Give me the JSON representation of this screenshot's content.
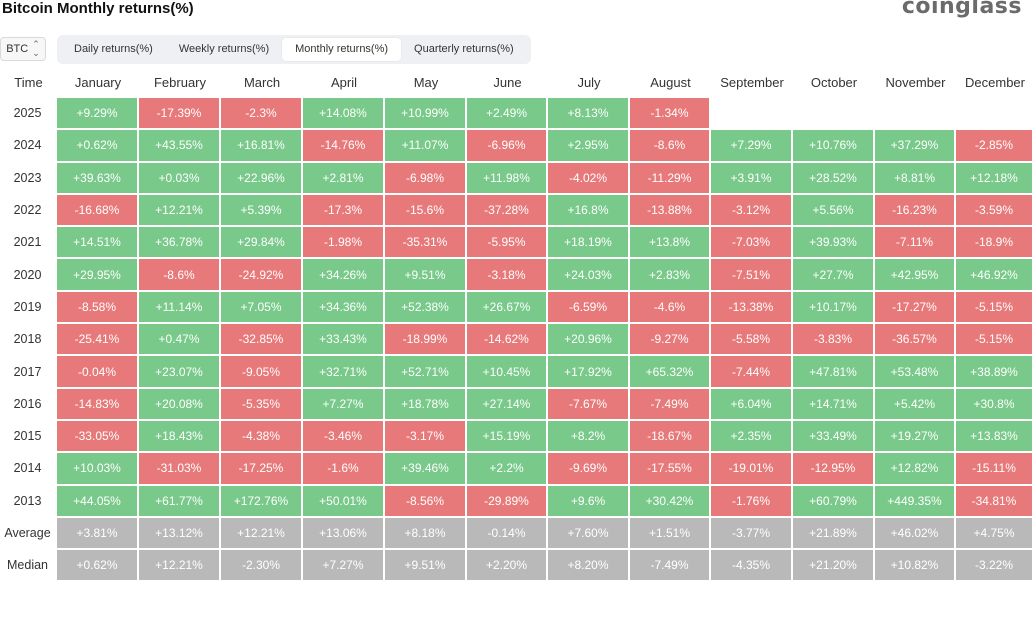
{
  "title": "Bitcoin Monthly returns(%)",
  "brand": "coinglass",
  "asset_selector": {
    "value": "BTC"
  },
  "tabs": [
    {
      "label": "Daily returns(%)",
      "active": false
    },
    {
      "label": "Weekly returns(%)",
      "active": false
    },
    {
      "label": "Monthly returns(%)",
      "active": true
    },
    {
      "label": "Quarterly returns(%)",
      "active": false
    }
  ],
  "colors": {
    "positive": "#78c98a",
    "negative": "#e8797a",
    "stat": "#b9b9b9"
  },
  "table": {
    "corner_label": "Time",
    "months": [
      "January",
      "February",
      "March",
      "April",
      "May",
      "June",
      "July",
      "August",
      "September",
      "October",
      "November",
      "December"
    ],
    "rows": [
      {
        "year": "2025",
        "values": [
          "+9.29%",
          "-17.39%",
          "-2.3%",
          "+14.08%",
          "+10.99%",
          "+2.49%",
          "+8.13%",
          "-1.34%",
          "",
          "",
          "",
          ""
        ]
      },
      {
        "year": "2024",
        "values": [
          "+0.62%",
          "+43.55%",
          "+16.81%",
          "-14.76%",
          "+11.07%",
          "-6.96%",
          "+2.95%",
          "-8.6%",
          "+7.29%",
          "+10.76%",
          "+37.29%",
          "-2.85%"
        ]
      },
      {
        "year": "2023",
        "values": [
          "+39.63%",
          "+0.03%",
          "+22.96%",
          "+2.81%",
          "-6.98%",
          "+11.98%",
          "-4.02%",
          "-11.29%",
          "+3.91%",
          "+28.52%",
          "+8.81%",
          "+12.18%"
        ]
      },
      {
        "year": "2022",
        "values": [
          "-16.68%",
          "+12.21%",
          "+5.39%",
          "-17.3%",
          "-15.6%",
          "-37.28%",
          "+16.8%",
          "-13.88%",
          "-3.12%",
          "+5.56%",
          "-16.23%",
          "-3.59%"
        ]
      },
      {
        "year": "2021",
        "values": [
          "+14.51%",
          "+36.78%",
          "+29.84%",
          "-1.98%",
          "-35.31%",
          "-5.95%",
          "+18.19%",
          "+13.8%",
          "-7.03%",
          "+39.93%",
          "-7.11%",
          "-18.9%"
        ]
      },
      {
        "year": "2020",
        "values": [
          "+29.95%",
          "-8.6%",
          "-24.92%",
          "+34.26%",
          "+9.51%",
          "-3.18%",
          "+24.03%",
          "+2.83%",
          "-7.51%",
          "+27.7%",
          "+42.95%",
          "+46.92%"
        ]
      },
      {
        "year": "2019",
        "values": [
          "-8.58%",
          "+11.14%",
          "+7.05%",
          "+34.36%",
          "+52.38%",
          "+26.67%",
          "-6.59%",
          "-4.6%",
          "-13.38%",
          "+10.17%",
          "-17.27%",
          "-5.15%"
        ]
      },
      {
        "year": "2018",
        "values": [
          "-25.41%",
          "+0.47%",
          "-32.85%",
          "+33.43%",
          "-18.99%",
          "-14.62%",
          "+20.96%",
          "-9.27%",
          "-5.58%",
          "-3.83%",
          "-36.57%",
          "-5.15%"
        ]
      },
      {
        "year": "2017",
        "values": [
          "-0.04%",
          "+23.07%",
          "-9.05%",
          "+32.71%",
          "+52.71%",
          "+10.45%",
          "+17.92%",
          "+65.32%",
          "-7.44%",
          "+47.81%",
          "+53.48%",
          "+38.89%"
        ]
      },
      {
        "year": "2016",
        "values": [
          "-14.83%",
          "+20.08%",
          "-5.35%",
          "+7.27%",
          "+18.78%",
          "+27.14%",
          "-7.67%",
          "-7.49%",
          "+6.04%",
          "+14.71%",
          "+5.42%",
          "+30.8%"
        ]
      },
      {
        "year": "2015",
        "values": [
          "-33.05%",
          "+18.43%",
          "-4.38%",
          "-3.46%",
          "-3.17%",
          "+15.19%",
          "+8.2%",
          "-18.67%",
          "+2.35%",
          "+33.49%",
          "+19.27%",
          "+13.83%"
        ]
      },
      {
        "year": "2014",
        "values": [
          "+10.03%",
          "-31.03%",
          "-17.25%",
          "-1.6%",
          "+39.46%",
          "+2.2%",
          "-9.69%",
          "-17.55%",
          "-19.01%",
          "-12.95%",
          "+12.82%",
          "-15.11%"
        ]
      },
      {
        "year": "2013",
        "values": [
          "+44.05%",
          "+61.77%",
          "+172.76%",
          "+50.01%",
          "-8.56%",
          "-29.89%",
          "+9.6%",
          "+30.42%",
          "-1.76%",
          "+60.79%",
          "+449.35%",
          "-34.81%"
        ]
      }
    ],
    "stats": [
      {
        "label": "Average",
        "values": [
          "+3.81%",
          "+13.12%",
          "+12.21%",
          "+13.06%",
          "+8.18%",
          "-0.14%",
          "+7.60%",
          "+1.51%",
          "-3.77%",
          "+21.89%",
          "+46.02%",
          "+4.75%"
        ]
      },
      {
        "label": "Median",
        "values": [
          "+0.62%",
          "+12.21%",
          "-2.30%",
          "+7.27%",
          "+9.51%",
          "+2.20%",
          "+8.20%",
          "-7.49%",
          "-4.35%",
          "+21.20%",
          "+10.82%",
          "-3.22%"
        ]
      }
    ]
  }
}
